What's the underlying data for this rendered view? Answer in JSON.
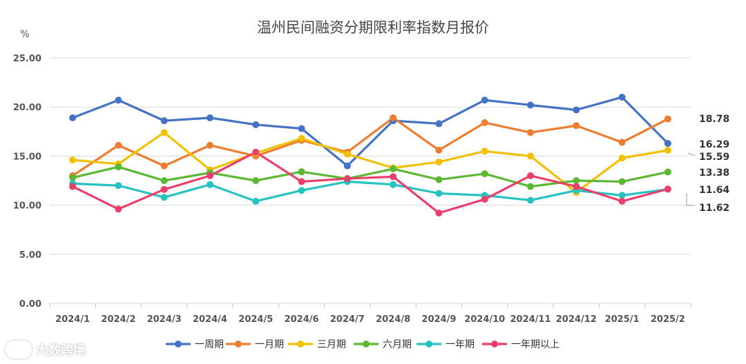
{
  "chart_data": {
    "type": "line",
    "title": "温州民间融资分期限利率指数月报价",
    "ylabel": "%",
    "xlabel": "",
    "ylim": [
      0,
      25
    ],
    "y_ticks": [
      "0.00",
      "5.00",
      "10.00",
      "15.00",
      "20.00",
      "25.00"
    ],
    "categories": [
      "2024/1",
      "2024/2",
      "2024/3",
      "2024/4",
      "2024/5",
      "2024/6",
      "2024/7",
      "2024/8",
      "2024/9",
      "2024/10",
      "2024/11",
      "2024/12",
      "2025/1",
      "2025/2"
    ],
    "grid": true,
    "legend_position": "bottom",
    "series": [
      {
        "name": "一周期",
        "color": "#4472C4",
        "values": [
          18.9,
          20.7,
          18.6,
          18.9,
          18.2,
          17.8,
          14.0,
          18.6,
          18.3,
          20.7,
          20.2,
          19.7,
          21.0,
          16.29
        ]
      },
      {
        "name": "一月期",
        "color": "#ED7D31",
        "values": [
          13.0,
          16.1,
          14.0,
          16.1,
          15.0,
          16.6,
          15.4,
          18.9,
          15.6,
          18.4,
          17.4,
          18.1,
          16.4,
          18.78
        ]
      },
      {
        "name": "三月期",
        "color": "#F2C000",
        "values": [
          14.6,
          14.2,
          17.4,
          13.6,
          15.3,
          16.8,
          15.2,
          13.8,
          14.4,
          15.5,
          15.0,
          11.3,
          14.8,
          15.59
        ]
      },
      {
        "name": "六月期",
        "color": "#5BB832",
        "values": [
          12.8,
          13.9,
          12.5,
          13.3,
          12.5,
          13.4,
          12.7,
          13.7,
          12.6,
          13.2,
          11.9,
          12.5,
          12.4,
          13.38
        ]
      },
      {
        "name": "一年期",
        "color": "#26C2C2",
        "values": [
          12.2,
          12.0,
          10.8,
          12.1,
          10.4,
          11.5,
          12.4,
          12.1,
          11.2,
          11.0,
          10.5,
          11.5,
          11.0,
          11.62
        ]
      },
      {
        "name": "一年期以上",
        "color": "#E8406A",
        "values": [
          11.9,
          9.6,
          11.6,
          13.0,
          15.4,
          12.4,
          12.7,
          12.9,
          9.2,
          10.6,
          13.0,
          11.9,
          10.4,
          11.64
        ]
      }
    ],
    "end_labels": [
      "18.78",
      "16.29",
      "15.59",
      "13.38",
      "11.64",
      "11.62"
    ],
    "watermark": "大数跨境"
  }
}
